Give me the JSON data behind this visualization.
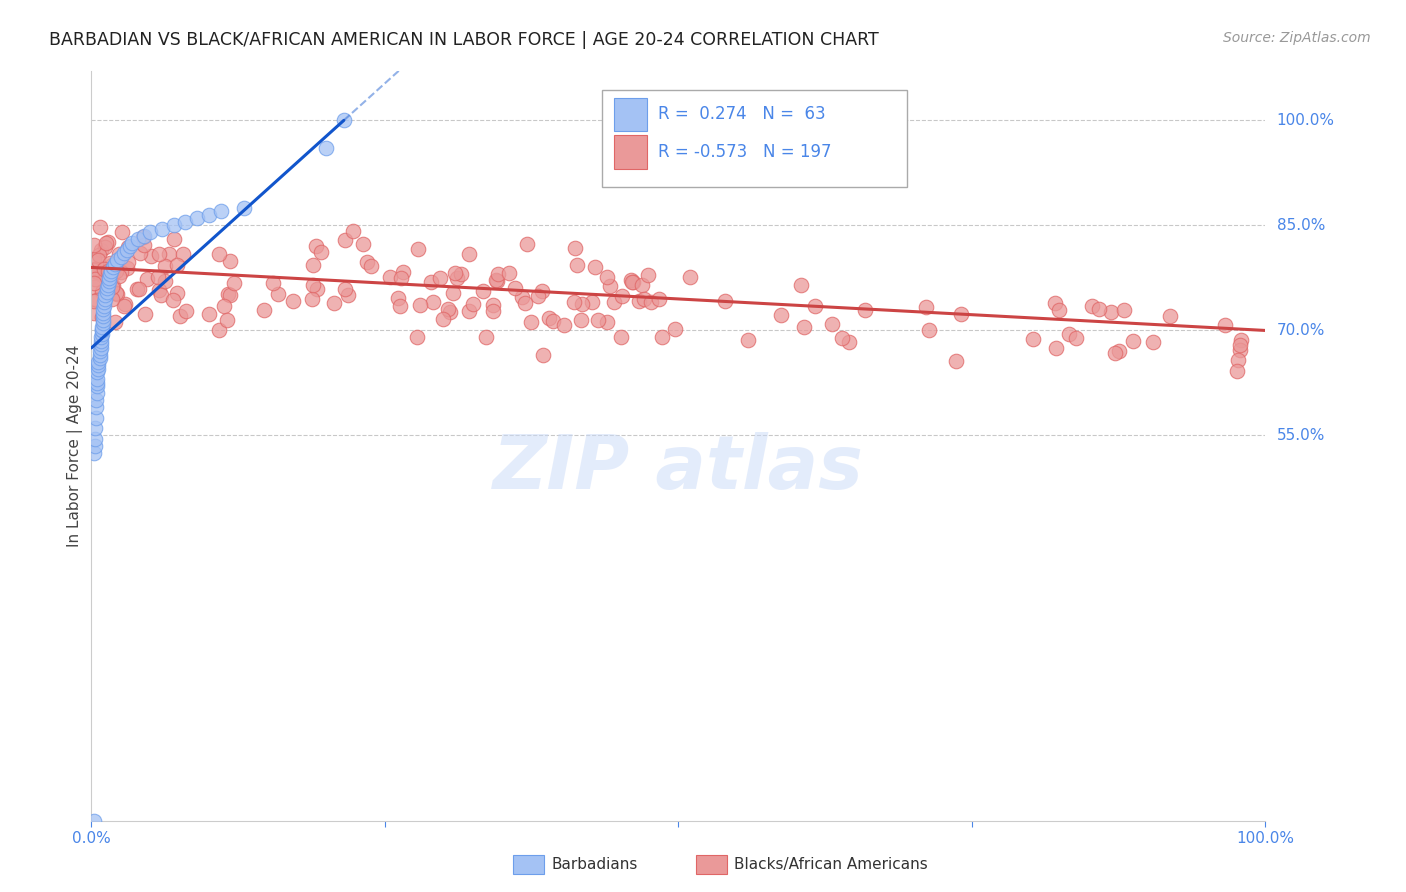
{
  "title": "BARBADIAN VS BLACK/AFRICAN AMERICAN IN LABOR FORCE | AGE 20-24 CORRELATION CHART",
  "source": "Source: ZipAtlas.com",
  "ylabel": "In Labor Force | Age 20-24",
  "legend_R1": "0.274",
  "legend_N1": "63",
  "legend_R2": "-0.573",
  "legend_N2": "197",
  "blue_fill": "#a4c2f4",
  "blue_edge": "#6d9eeb",
  "pink_fill": "#ea9999",
  "pink_edge": "#e06666",
  "blue_line_color": "#1155cc",
  "pink_line_color": "#cc4444",
  "axis_color": "#cccccc",
  "grid_color": "#bbbbbb",
  "title_color": "#222222",
  "source_color": "#999999",
  "tick_color": "#4a86e8",
  "watermark_color": "#c9daf8",
  "ytick_vals": [
    0.55,
    0.7,
    0.85,
    1.0
  ],
  "ytick_labels": [
    "55.0%",
    "70.0%",
    "85.0%",
    "100.0%"
  ],
  "xlim": [
    0.0,
    1.0
  ],
  "ylim": [
    0.0,
    1.07
  ]
}
